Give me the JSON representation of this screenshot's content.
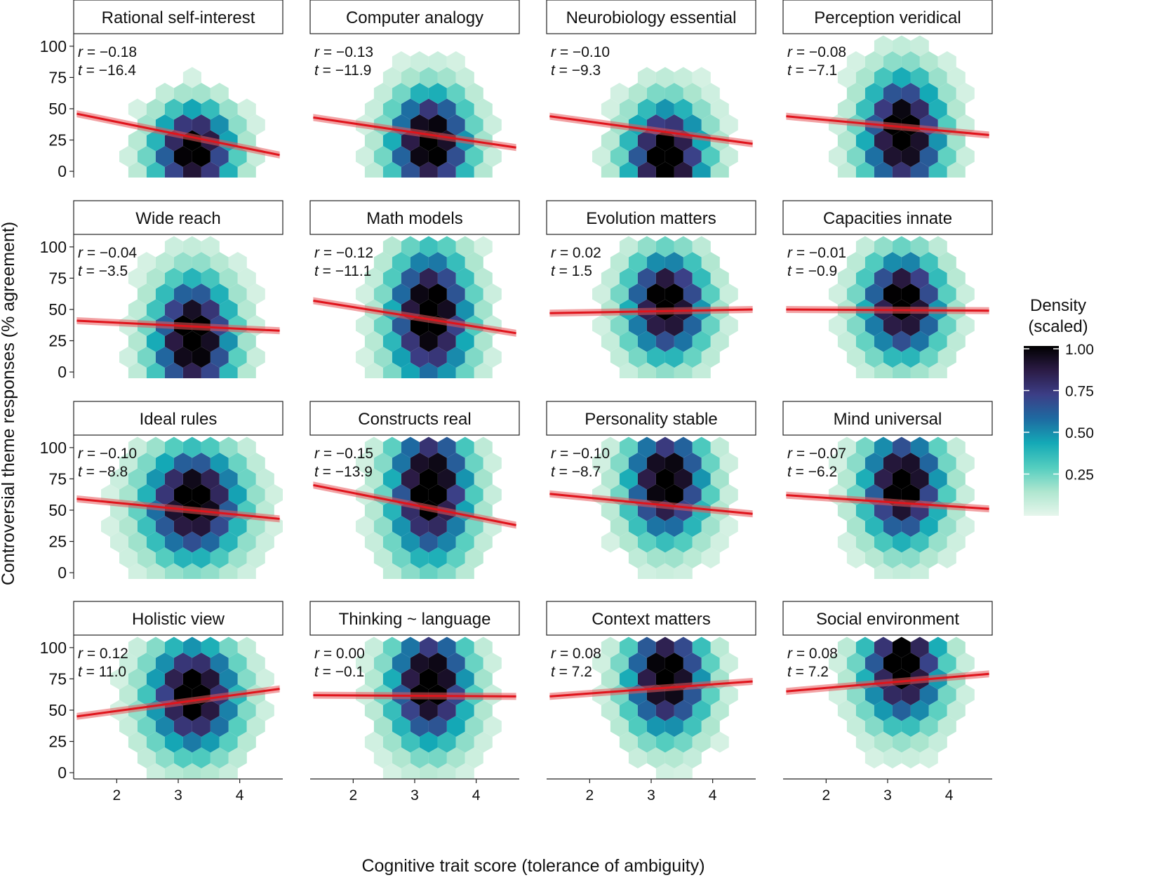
{
  "chart_data": {
    "type": "hexbin",
    "xlabel": "Cognitive trait score (tolerance of ambiguity)",
    "ylabel": "Controversial theme responses (% agreement)",
    "xlim": [
      1.3,
      4.7
    ],
    "ylim": [
      -5,
      110
    ],
    "x_ticks": [
      "2",
      "3",
      "4"
    ],
    "y_ticks": [
      "100",
      "75",
      "50",
      "25",
      "0"
    ],
    "stat_r_label": "r",
    "stat_t_label": "t",
    "legend": {
      "title_line1": "Density",
      "title_line2": "(scaled)",
      "ticks": [
        "1.00",
        "0.75",
        "0.50",
        "0.25"
      ],
      "colors": [
        "#e6f6ec",
        "#aee6cf",
        "#53cdbf",
        "#14a9b6",
        "#1e6aa1",
        "#3c3e86",
        "#2b1b45",
        "#000000"
      ]
    },
    "panels": [
      {
        "title": "Rational self-interest",
        "r": "−0.18",
        "t": "−16.4",
        "line": [
          46,
          13
        ],
        "peak": [
          3.25,
          12
        ],
        "spread": [
          0.45,
          25
        ]
      },
      {
        "title": "Computer analogy",
        "r": "−0.13",
        "t": "−11.9",
        "line": [
          43,
          19
        ],
        "peak": [
          3.25,
          18
        ],
        "spread": [
          0.45,
          30
        ]
      },
      {
        "title": "Neurobiology essential",
        "r": "−0.10",
        "t": "−9.3",
        "line": [
          44,
          22
        ],
        "peak": [
          3.25,
          5
        ],
        "spread": [
          0.45,
          32
        ]
      },
      {
        "title": "Perception veridical",
        "r": "−0.08",
        "t": "−7.1",
        "line": [
          44,
          29
        ],
        "peak": [
          3.25,
          25
        ],
        "spread": [
          0.45,
          34
        ]
      },
      {
        "title": "Wide reach",
        "r": "−0.04",
        "t": "−3.5",
        "line": [
          41,
          33
        ],
        "peak": [
          3.25,
          22
        ],
        "spread": [
          0.45,
          35
        ]
      },
      {
        "title": "Math models",
        "r": "−0.12",
        "t": "−11.1",
        "line": [
          57,
          31
        ],
        "peak": [
          3.25,
          40
        ],
        "spread": [
          0.45,
          38
        ]
      },
      {
        "title": "Evolution matters",
        "r": "0.02",
        "t": "1.5",
        "line": [
          47,
          50
        ],
        "peak": [
          3.25,
          50
        ],
        "spread": [
          0.45,
          28
        ]
      },
      {
        "title": "Capacities innate",
        "r": "−0.01",
        "t": "−0.9",
        "line": [
          50,
          49
        ],
        "peak": [
          3.25,
          50
        ],
        "spread": [
          0.45,
          28
        ]
      },
      {
        "title": "Ideal rules",
        "r": "−0.10",
        "t": "−8.8",
        "line": [
          59,
          43
        ],
        "peak": [
          3.25,
          52
        ],
        "spread": [
          0.55,
          30
        ]
      },
      {
        "title": "Constructs real",
        "r": "−0.15",
        "t": "−13.9",
        "line": [
          70,
          38
        ],
        "peak": [
          3.25,
          62
        ],
        "spread": [
          0.45,
          38
        ]
      },
      {
        "title": "Personality stable",
        "r": "−0.10",
        "t": "−8.7",
        "line": [
          63,
          47
        ],
        "peak": [
          3.25,
          68
        ],
        "spread": [
          0.45,
          30
        ]
      },
      {
        "title": "Mind universal",
        "r": "−0.07",
        "t": "−6.2",
        "line": [
          62,
          51
        ],
        "peak": [
          3.25,
          65
        ],
        "spread": [
          0.45,
          30
        ]
      },
      {
        "title": "Holistic view",
        "r": "0.12",
        "t": "11.0",
        "line": [
          45,
          67
        ],
        "peak": [
          3.25,
          58
        ],
        "spread": [
          0.5,
          30
        ]
      },
      {
        "title": "Thinking ~ language",
        "r": "0.00",
        "t": "−0.1",
        "line": [
          62,
          61
        ],
        "peak": [
          3.25,
          66
        ],
        "spread": [
          0.45,
          32
        ]
      },
      {
        "title": "Context matters",
        "r": "0.08",
        "t": "7.2",
        "line": [
          61,
          73
        ],
        "peak": [
          3.25,
          72
        ],
        "spread": [
          0.45,
          30
        ]
      },
      {
        "title": "Social environment",
        "r": "0.08",
        "t": "7.2",
        "line": [
          65,
          79
        ],
        "peak": [
          3.25,
          80
        ],
        "spread": [
          0.45,
          30
        ]
      }
    ]
  }
}
